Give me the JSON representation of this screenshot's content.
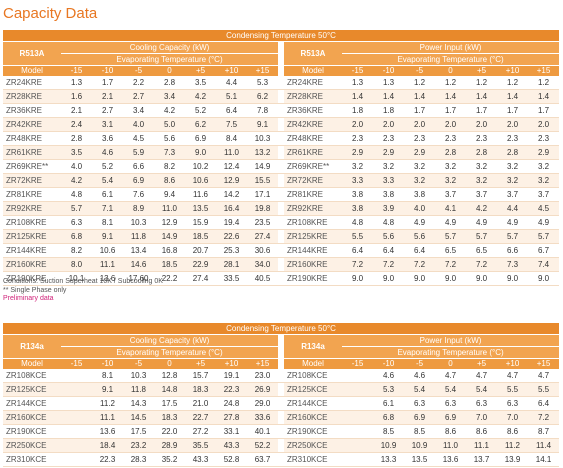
{
  "title": "Capacity Data",
  "tables": [
    {
      "condensing": "Condensing Temperature 50°C",
      "left": {
        "refrigerant": "R513A",
        "heading": "Cooling Capacity (kW)",
        "subheading": "Evaporating Temperature (°C)",
        "columns": [
          "Model",
          "-15",
          "-10",
          "-5",
          "0",
          "+5",
          "+10",
          "+15"
        ],
        "rows": [
          [
            "ZR24KRE",
            "1.3",
            "1.7",
            "2.2",
            "2.8",
            "3.5",
            "4.4",
            "5.3"
          ],
          [
            "ZR28KRE",
            "1.6",
            "2.1",
            "2.7",
            "3.4",
            "4.2",
            "5.1",
            "6.2"
          ],
          [
            "ZR36KRE",
            "2.1",
            "2.7",
            "3.4",
            "4.2",
            "5.2",
            "6.4",
            "7.8"
          ],
          [
            "ZR42KRE",
            "2.4",
            "3.1",
            "4.0",
            "5.0",
            "6.2",
            "7.5",
            "9.1"
          ],
          [
            "ZR48KRE",
            "2.8",
            "3.6",
            "4.5",
            "5.6",
            "6.9",
            "8.4",
            "10.3"
          ],
          [
            "ZR61KRE",
            "3.5",
            "4.6",
            "5.9",
            "7.3",
            "9.0",
            "11.0",
            "13.2"
          ],
          [
            "ZR69KRE**",
            "4.0",
            "5.2",
            "6.6",
            "8.2",
            "10.2",
            "12.4",
            "14.9"
          ],
          [
            "ZR72KRE",
            "4.2",
            "5.4",
            "6.9",
            "8.6",
            "10.6",
            "12.9",
            "15.5"
          ],
          [
            "ZR81KRE",
            "4.8",
            "6.1",
            "7.6",
            "9.4",
            "11.6",
            "14.2",
            "17.1"
          ],
          [
            "ZR92KRE",
            "5.7",
            "7.1",
            "8.9",
            "11.0",
            "13.5",
            "16.4",
            "19.8"
          ],
          [
            "ZR108KRE",
            "6.3",
            "8.1",
            "10.3",
            "12.9",
            "15.9",
            "19.4",
            "23.5"
          ],
          [
            "ZR125KRE",
            "6.8",
            "9.1",
            "11.8",
            "14.9",
            "18.5",
            "22.6",
            "27.4"
          ],
          [
            "ZR144KRE",
            "8.2",
            "10.6",
            "13.4",
            "16.8",
            "20.7",
            "25.3",
            "30.6"
          ],
          [
            "ZR160KRE",
            "8.0",
            "11.1",
            "14.6",
            "18.5",
            "22.9",
            "28.1",
            "34.0"
          ],
          [
            "ZR190KRE",
            "10.1",
            "13.6",
            "17.60",
            "22.2",
            "27.4",
            "33.5",
            "40.5"
          ]
        ]
      },
      "right": {
        "refrigerant": "R513A",
        "heading": "Power Input (kW)",
        "subheading": "Evaporating Temperature (°C)",
        "columns": [
          "Model",
          "-15",
          "-10",
          "-5",
          "0",
          "+5",
          "+10",
          "+15"
        ],
        "rows": [
          [
            "ZR24KRE",
            "1.3",
            "1.3",
            "1.2",
            "1.2",
            "1.2",
            "1.2",
            "1.2"
          ],
          [
            "ZR28KRE",
            "1.4",
            "1.4",
            "1.4",
            "1.4",
            "1.4",
            "1.4",
            "1.4"
          ],
          [
            "ZR36KRE",
            "1.8",
            "1.8",
            "1.7",
            "1.7",
            "1.7",
            "1.7",
            "1.7"
          ],
          [
            "ZR42KRE",
            "2.0",
            "2.0",
            "2.0",
            "2.0",
            "2.0",
            "2.0",
            "2.0"
          ],
          [
            "ZR48KRE",
            "2.3",
            "2.3",
            "2.3",
            "2.3",
            "2.3",
            "2.3",
            "2.3"
          ],
          [
            "ZR61KRE",
            "2.9",
            "2.9",
            "2.9",
            "2.8",
            "2.8",
            "2.8",
            "2.9"
          ],
          [
            "ZR69KRE**",
            "3.2",
            "3.2",
            "3.2",
            "3.2",
            "3.2",
            "3.2",
            "3.2"
          ],
          [
            "ZR72KRE",
            "3.3",
            "3.3",
            "3.2",
            "3.2",
            "3.2",
            "3.2",
            "3.2"
          ],
          [
            "ZR81KRE",
            "3.8",
            "3.8",
            "3.8",
            "3.7",
            "3.7",
            "3.7",
            "3.7"
          ],
          [
            "ZR92KRE",
            "3.8",
            "3.9",
            "4.0",
            "4.1",
            "4.2",
            "4.4",
            "4.5"
          ],
          [
            "ZR108KRE",
            "4.8",
            "4.8",
            "4.9",
            "4.9",
            "4.9",
            "4.9",
            "4.9"
          ],
          [
            "ZR125KRE",
            "5.5",
            "5.6",
            "5.6",
            "5.7",
            "5.7",
            "5.7",
            "5.7"
          ],
          [
            "ZR144KRE",
            "6.4",
            "6.4",
            "6.4",
            "6.5",
            "6.5",
            "6.6",
            "6.7"
          ],
          [
            "ZR160KRE",
            "7.2",
            "7.2",
            "7.2",
            "7.2",
            "7.2",
            "7.3",
            "7.4"
          ],
          [
            "ZR190KRE",
            "9.0",
            "9.0",
            "9.0",
            "9.0",
            "9.0",
            "9.0",
            "9.0"
          ]
        ]
      },
      "notes": [
        "Conditions: Suction Superheat 10K / Subcooling 0K",
        "** Single Phase only",
        "Preliminary data"
      ]
    },
    {
      "condensing": "Condensing Temperature 50°C",
      "left": {
        "refrigerant": "R134a",
        "heading": "Cooling Capacity (kW)",
        "subheading": "Evaporating Temperature (°C)",
        "columns": [
          "Model",
          "-15",
          "-10",
          "-5",
          "0",
          "+5",
          "+10",
          "+15"
        ],
        "rows": [
          [
            "ZR108KCE",
            null,
            "8.1",
            "10.3",
            "12.8",
            "15.7",
            "19.1",
            "23.0"
          ],
          [
            "ZR125KCE",
            null,
            "9.1",
            "11.8",
            "14.8",
            "18.3",
            "22.3",
            "26.9"
          ],
          [
            "ZR144KCE",
            null,
            "11.2",
            "14.3",
            "17.5",
            "21.0",
            "24.8",
            "29.0"
          ],
          [
            "ZR160KCE",
            null,
            "11.1",
            "14.5",
            "18.3",
            "22.7",
            "27.8",
            "33.6"
          ],
          [
            "ZR190KCE",
            null,
            "13.6",
            "17.5",
            "22.0",
            "27.2",
            "33.1",
            "40.1"
          ],
          [
            "ZR250KCE",
            null,
            "18.4",
            "23.2",
            "28.9",
            "35.5",
            "43.3",
            "52.2"
          ],
          [
            "ZR310KCE",
            null,
            "22.3",
            "28.3",
            "35.2",
            "43.3",
            "52.8",
            "63.7"
          ]
        ]
      },
      "right": {
        "refrigerant": "R134a",
        "heading": "Power Input (kW)",
        "subheading": "Evaporating Temperature (°C)",
        "columns": [
          "Model",
          "-15",
          "-10",
          "-5",
          "0",
          "+5",
          "+10",
          "+15"
        ],
        "rows": [
          [
            "ZR108KCE",
            null,
            "4.6",
            "4.6",
            "4.7",
            "4.7",
            "4.7",
            "4.7"
          ],
          [
            "ZR125KCE",
            null,
            "5.3",
            "5.4",
            "5.4",
            "5.4",
            "5.5",
            "5.5"
          ],
          [
            "ZR144KCE",
            null,
            "6.1",
            "6.3",
            "6.3",
            "6.3",
            "6.3",
            "6.4"
          ],
          [
            "ZR160KCE",
            null,
            "6.8",
            "6.9",
            "6.9",
            "7.0",
            "7.0",
            "7.2"
          ],
          [
            "ZR190KCE",
            null,
            "8.5",
            "8.5",
            "8.6",
            "8.6",
            "8.6",
            "8.7"
          ],
          [
            "ZR250KCE",
            null,
            "10.9",
            "10.9",
            "11.0",
            "11.1",
            "11.2",
            "11.4"
          ],
          [
            "ZR310KCE",
            null,
            "13.3",
            "13.5",
            "13.6",
            "13.7",
            "13.9",
            "14.1"
          ]
        ]
      }
    }
  ]
}
